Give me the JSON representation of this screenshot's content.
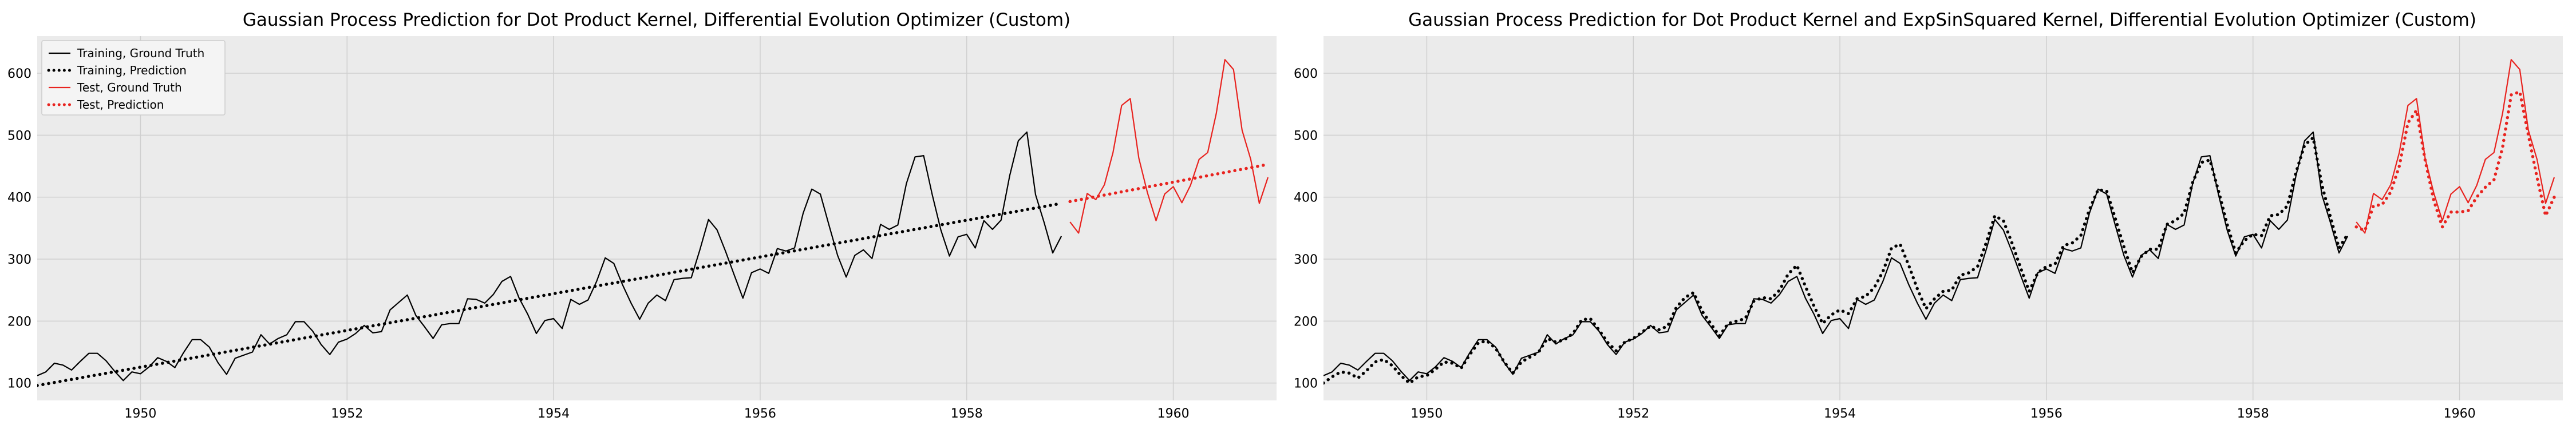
{
  "colors": {
    "plot_bg": "#ebebeb",
    "grid": "#cfcfcf",
    "training": "#000000",
    "test": "#e8231f"
  },
  "chart_data": [
    {
      "type": "line",
      "title": "Gaussian Process Prediction for Dot Product Kernel, Differential Evolution Optimizer (Custom)",
      "xlabel": "",
      "ylabel": "",
      "xlim": [
        1949,
        1961
      ],
      "ylim": [
        72,
        660
      ],
      "grid": true,
      "legend": "top-left",
      "xticks": [
        1950,
        1952,
        1954,
        1956,
        1958,
        1960
      ],
      "yticks": [
        100,
        200,
        300,
        400,
        500,
        600
      ],
      "series": [
        {
          "name": "Training, Ground Truth",
          "color": "#000000",
          "style": "solid",
          "x_start": 1949.0,
          "x_step": 0.08333,
          "values": [
            112,
            118,
            132,
            129,
            121,
            135,
            148,
            148,
            136,
            119,
            104,
            118,
            115,
            126,
            141,
            135,
            125,
            149,
            170,
            170,
            158,
            133,
            114,
            140,
            145,
            150,
            178,
            163,
            172,
            178,
            199,
            199,
            184,
            162,
            146,
            166,
            171,
            180,
            193,
            181,
            183,
            218,
            230,
            242,
            209,
            191,
            172,
            194,
            196,
            196,
            236,
            235,
            229,
            243,
            264,
            272,
            237,
            211,
            180,
            201,
            204,
            188,
            235,
            227,
            234,
            264,
            302,
            293,
            259,
            229,
            203,
            229,
            242,
            233,
            267,
            269,
            270,
            315,
            364,
            347,
            312,
            274,
            237,
            278,
            284,
            277,
            317,
            313,
            318,
            374,
            413,
            405,
            355,
            306,
            271,
            306,
            315,
            301,
            356,
            348,
            355,
            422,
            465,
            467,
            404,
            347,
            305,
            336,
            340,
            318,
            362,
            348,
            363,
            435,
            491,
            505,
            404,
            359,
            310,
            337
          ]
        },
        {
          "name": "Training, Prediction",
          "color": "#000000",
          "style": "dotted",
          "x": [
            1949.0,
            1958.92
          ],
          "values": [
            96,
            390
          ]
        },
        {
          "name": "Test, Ground Truth",
          "color": "#e8231f",
          "style": "solid",
          "x_start": 1959.0,
          "x_step": 0.08333,
          "values": [
            360,
            342,
            406,
            396,
            420,
            472,
            548,
            559,
            463,
            407,
            362,
            405,
            417,
            391,
            419,
            461,
            472,
            535,
            622,
            606,
            508,
            461,
            390,
            432
          ]
        },
        {
          "name": "Test, Prediction",
          "color": "#e8231f",
          "style": "dotted",
          "x": [
            1959.0,
            1960.92
          ],
          "values": [
            393,
            453
          ]
        }
      ]
    },
    {
      "type": "line",
      "title": "Gaussian Process Prediction for Dot Product Kernel and ExpSinSquared Kernel,  Differential Evolution Optimizer (Custom)",
      "xlabel": "",
      "ylabel": "",
      "xlim": [
        1949,
        1961
      ],
      "ylim": [
        72,
        660
      ],
      "grid": true,
      "xticks": [
        1950,
        1952,
        1954,
        1956,
        1958,
        1960
      ],
      "yticks": [
        100,
        200,
        300,
        400,
        500,
        600
      ],
      "series": [
        {
          "color": "#000000",
          "style": "solid",
          "x_start": 1949.0,
          "x_step": 0.08333,
          "values": [
            112,
            118,
            132,
            129,
            121,
            135,
            148,
            148,
            136,
            119,
            104,
            118,
            115,
            126,
            141,
            135,
            125,
            149,
            170,
            170,
            158,
            133,
            114,
            140,
            145,
            150,
            178,
            163,
            172,
            178,
            199,
            199,
            184,
            162,
            146,
            166,
            171,
            180,
            193,
            181,
            183,
            218,
            230,
            242,
            209,
            191,
            172,
            194,
            196,
            196,
            236,
            235,
            229,
            243,
            264,
            272,
            237,
            211,
            180,
            201,
            204,
            188,
            235,
            227,
            234,
            264,
            302,
            293,
            259,
            229,
            203,
            229,
            242,
            233,
            267,
            269,
            270,
            315,
            364,
            347,
            312,
            274,
            237,
            278,
            284,
            277,
            317,
            313,
            318,
            374,
            413,
            405,
            355,
            306,
            271,
            306,
            315,
            301,
            356,
            348,
            355,
            422,
            465,
            467,
            404,
            347,
            305,
            336,
            340,
            318,
            362,
            348,
            363,
            435,
            491,
            505,
            404,
            359,
            310,
            337
          ]
        },
        {
          "color": "#000000",
          "style": "dotted",
          "x_start": 1949.0,
          "x_step": 0.08333,
          "values": [
            100,
            110,
            118,
            116,
            108,
            120,
            134,
            138,
            128,
            112,
            100,
            110,
            112,
            122,
            134,
            132,
            124,
            146,
            165,
            168,
            156,
            134,
            116,
            134,
            142,
            150,
            172,
            166,
            170,
            180,
            202,
            204,
            186,
            166,
            152,
            166,
            172,
            182,
            192,
            186,
            192,
            222,
            238,
            246,
            216,
            196,
            176,
            196,
            200,
            204,
            232,
            238,
            236,
            250,
            276,
            290,
            256,
            224,
            196,
            210,
            218,
            212,
            236,
            240,
            254,
            280,
            318,
            324,
            290,
            252,
            220,
            236,
            248,
            250,
            274,
            278,
            288,
            326,
            370,
            362,
            326,
            286,
            248,
            278,
            288,
            292,
            322,
            326,
            338,
            380,
            412,
            410,
            366,
            320,
            278,
            304,
            316,
            316,
            356,
            362,
            374,
            424,
            456,
            460,
            410,
            356,
            310,
            330,
            340,
            338,
            370,
            372,
            386,
            440,
            484,
            496,
            420,
            368,
            318,
            340
          ]
        },
        {
          "color": "#e8231f",
          "style": "solid",
          "x_start": 1959.0,
          "x_step": 0.08333,
          "values": [
            360,
            342,
            406,
            396,
            420,
            472,
            548,
            559,
            463,
            407,
            362,
            405,
            417,
            391,
            419,
            461,
            472,
            535,
            622,
            606,
            508,
            461,
            390,
            432
          ]
        },
        {
          "color": "#e8231f",
          "style": "dotted",
          "x_start": 1959.0,
          "x_step": 0.08333,
          "values": [
            352,
            346,
            386,
            388,
            408,
            450,
            520,
            540,
            460,
            395,
            352,
            376,
            376,
            378,
            400,
            416,
            428,
            480,
            565,
            570,
            500,
            432,
            370,
            400
          ]
        }
      ]
    }
  ]
}
